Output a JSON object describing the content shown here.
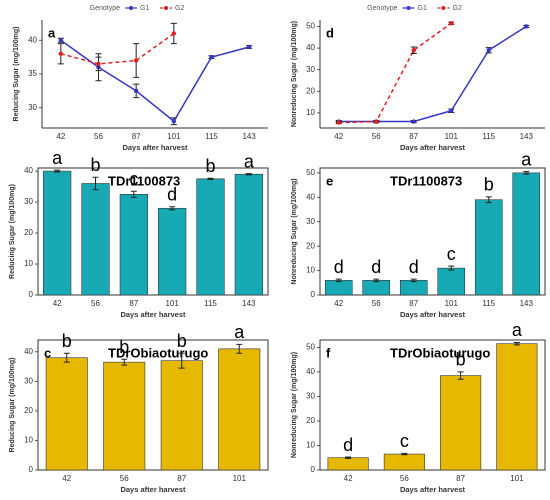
{
  "chart_data": [
    {
      "type": "line",
      "panel_label": "a",
      "legend_title": "Genotype",
      "x_label": "Days after harvest",
      "y_label": "Reducing Sugar (mg/100mg)",
      "categories": [
        "42",
        "56",
        "87",
        "101",
        "115",
        "143"
      ],
      "ylim": [
        27,
        43
      ],
      "yticks": [
        30,
        35,
        40
      ],
      "series": [
        {
          "name": "G1",
          "color": "#3535c8",
          "dashed": false,
          "values": [
            40,
            36,
            32.5,
            28,
            37.5,
            39
          ],
          "errors": [
            0.3,
            2,
            1,
            0.5,
            0.2,
            0.2
          ]
        },
        {
          "name": "G2",
          "color": "#e02020",
          "dashed": true,
          "values": [
            38,
            36.5,
            37,
            41,
            null,
            null
          ],
          "errors": [
            1.5,
            1,
            2.5,
            1.5,
            null,
            null
          ]
        }
      ]
    },
    {
      "type": "line",
      "panel_label": "d",
      "legend_title": "Genotype",
      "x_label": "Days after harvest",
      "y_label": "Nonreducing Sugar (mg/100mg)",
      "categories": [
        "42",
        "56",
        "87",
        "101",
        "115",
        "143"
      ],
      "ylim": [
        3,
        53
      ],
      "yticks": [
        10,
        20,
        30,
        40,
        50
      ],
      "series": [
        {
          "name": "G1",
          "color": "#3535c8",
          "dashed": false,
          "values": [
            6,
            6,
            6,
            11,
            39,
            50
          ],
          "errors": [
            0.5,
            0.5,
            0.5,
            0.8,
            1.2,
            0.5
          ]
        },
        {
          "name": "G2",
          "color": "#e02020",
          "dashed": true,
          "values": [
            5.5,
            6,
            39,
            51.5,
            null,
            null
          ],
          "errors": [
            0.5,
            0.5,
            1.5,
            0.5,
            null,
            null
          ]
        }
      ]
    },
    {
      "type": "bar",
      "panel_label": "b",
      "title": "TDr1100873",
      "x_label": "Days after harvest",
      "y_label": "Reducing Sugar (mg/100mg)",
      "categories": [
        "42",
        "56",
        "87",
        "101",
        "115",
        "143"
      ],
      "color": "#17aab5",
      "ylim": [
        0,
        41
      ],
      "yticks": [
        0,
        10,
        20,
        30,
        40
      ],
      "values": [
        40,
        36,
        32.5,
        28,
        37.5,
        39
      ],
      "errors": [
        0.3,
        2,
        1,
        0.5,
        0.2,
        0.2
      ],
      "letters": [
        "a",
        "b",
        "c",
        "d",
        "b",
        "a"
      ]
    },
    {
      "type": "bar",
      "panel_label": "e",
      "title": "TDr1100873",
      "x_label": "Days after harvest",
      "y_label": "Nonreducing Sugar (mg/100mg)",
      "categories": [
        "42",
        "56",
        "87",
        "101",
        "115",
        "143"
      ],
      "color": "#17aab5",
      "ylim": [
        0,
        52
      ],
      "yticks": [
        0,
        10,
        20,
        30,
        40,
        50
      ],
      "values": [
        6,
        6,
        6,
        11,
        39,
        50
      ],
      "errors": [
        0.5,
        0.5,
        0.5,
        0.8,
        1.2,
        0.5
      ],
      "letters": [
        "d",
        "d",
        "d",
        "c",
        "b",
        "a"
      ]
    },
    {
      "type": "bar",
      "panel_label": "c",
      "title": "TDrObiaoturugo",
      "x_label": "Days after harvest",
      "y_label": "Reducing Sugar (mg/100mg)",
      "categories": [
        "42",
        "56",
        "87",
        "101"
      ],
      "color": "#e6b800",
      "ylim": [
        0,
        44
      ],
      "yticks": [
        0,
        10,
        20,
        30,
        40
      ],
      "values": [
        38,
        36.5,
        37,
        41
      ],
      "errors": [
        1.5,
        1,
        2.5,
        1.5
      ],
      "letters": [
        "b",
        "b",
        "b",
        "a"
      ]
    },
    {
      "type": "bar",
      "panel_label": "f",
      "title": "TDrObiaoturugo",
      "x_label": "Days after harvest",
      "y_label": "Nonreducing Sugar (mg/100mg)",
      "categories": [
        "42",
        "56",
        "87",
        "101"
      ],
      "color": "#e6b800",
      "ylim": [
        0,
        53
      ],
      "yticks": [
        0,
        10,
        20,
        30,
        40,
        50
      ],
      "values": [
        5,
        6.5,
        38.5,
        51.5
      ],
      "errors": [
        0.3,
        0.3,
        1.5,
        0.5
      ],
      "letters": [
        "d",
        "c",
        "b",
        "a"
      ]
    }
  ]
}
